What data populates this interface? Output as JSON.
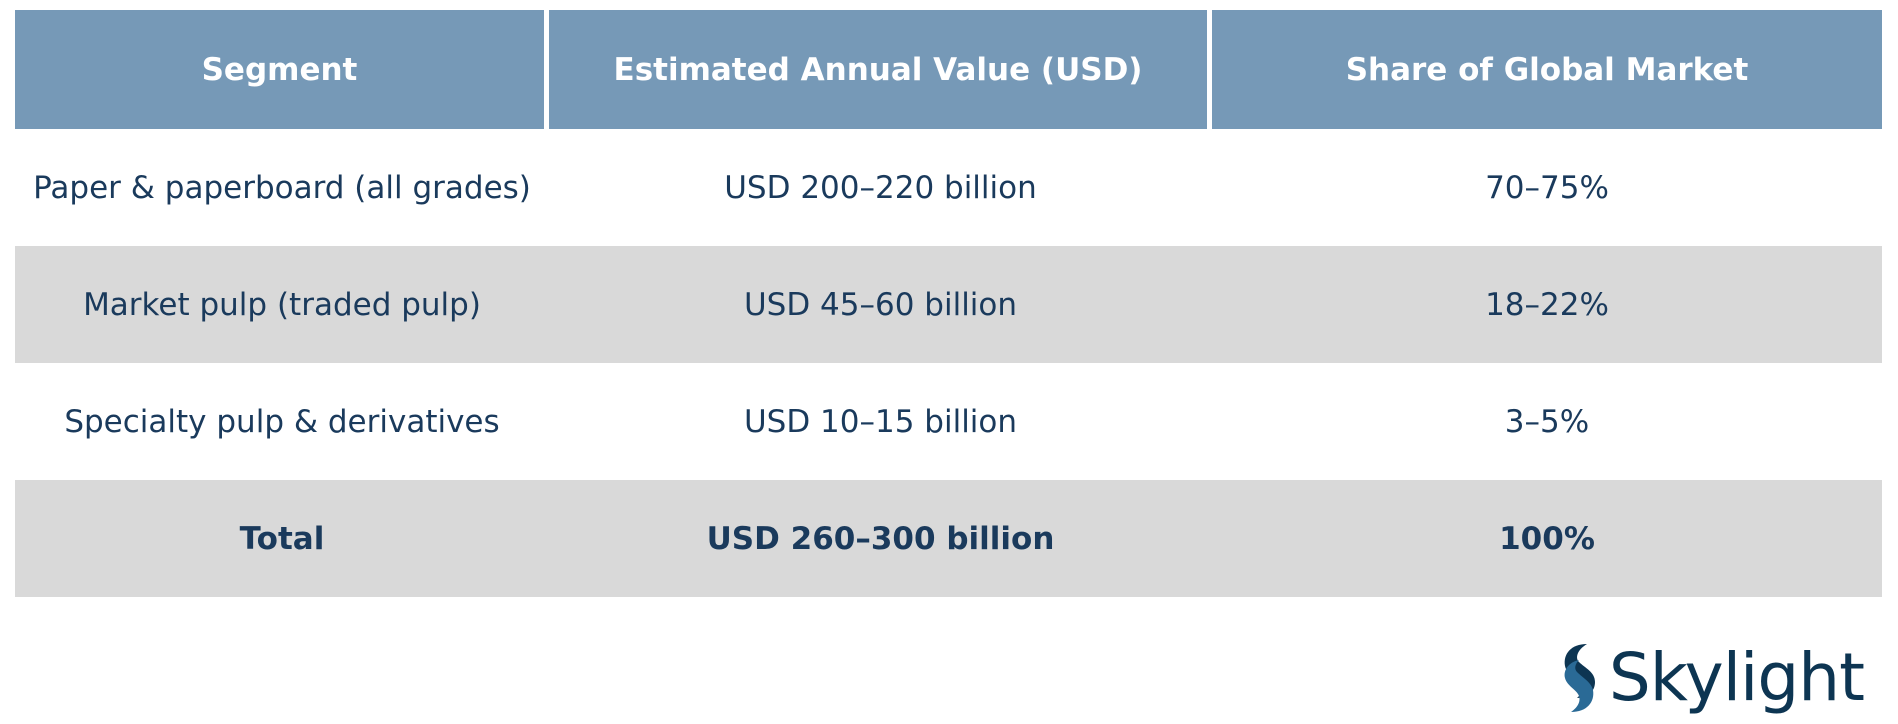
{
  "table": {
    "headers": [
      "Segment",
      "Estimated Annual Value (USD)",
      "Share of Global Market"
    ],
    "rows": [
      [
        "Paper & paperboard (all grades)",
        "USD 200–220 billion",
        "70–75%"
      ],
      [
        "Market pulp (traded pulp)",
        "USD 45–60 billion",
        "18–22%"
      ],
      [
        "Specialty pulp & derivatives",
        "USD 10–15 billion",
        "3–5%"
      ]
    ],
    "total": [
      "Total",
      "USD 260–300 billion",
      "100%"
    ]
  },
  "logo": {
    "text": "Skylight",
    "icon": "skylight-logo-icon"
  },
  "colors": {
    "header_bg": "#7699b7",
    "header_text": "#ffffff",
    "body_text": "#1a3a5c",
    "shaded_row": "#d9d9d9",
    "logo_color": "#0d3552"
  }
}
